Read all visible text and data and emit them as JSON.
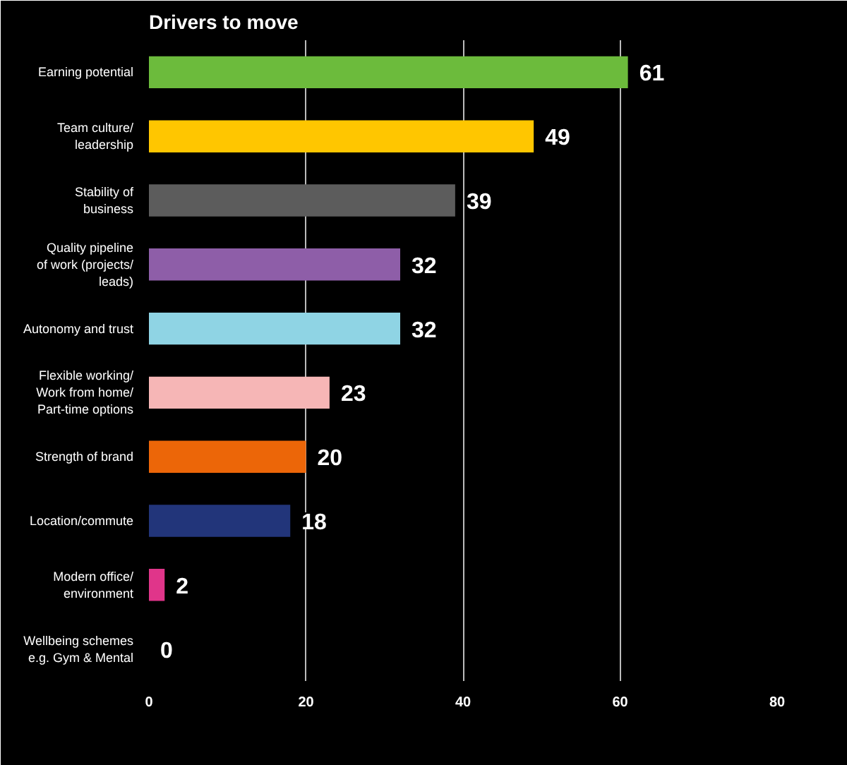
{
  "chart_data": {
    "type": "bar",
    "orientation": "horizontal",
    "title": "Drivers to move",
    "categories": [
      "Earning potential",
      "Team culture/ leadership",
      "Stability of business",
      "Quality pipeline of work (projects/ leads)",
      "Autonomy and trust",
      "Flexible working/ Work from home/ Part-time options",
      "Strength of brand",
      "Location/commute",
      "Modern office/ environment",
      "Wellbeing schemes e.g. Gym & Mental"
    ],
    "values": [
      61,
      49,
      39,
      32,
      32,
      23,
      20,
      18,
      2,
      0
    ],
    "colors": [
      "#6cbb3c",
      "#ffc600",
      "#5c5c5c",
      "#8e5ea8",
      "#8fd4e4",
      "#f6b6b6",
      "#ec6608",
      "#22357a",
      "#e0358a",
      "#cccccc"
    ],
    "data_labels": true,
    "xlim": [
      0,
      80
    ],
    "xticks": [
      0,
      20,
      40,
      60,
      80
    ],
    "grid": "x"
  }
}
